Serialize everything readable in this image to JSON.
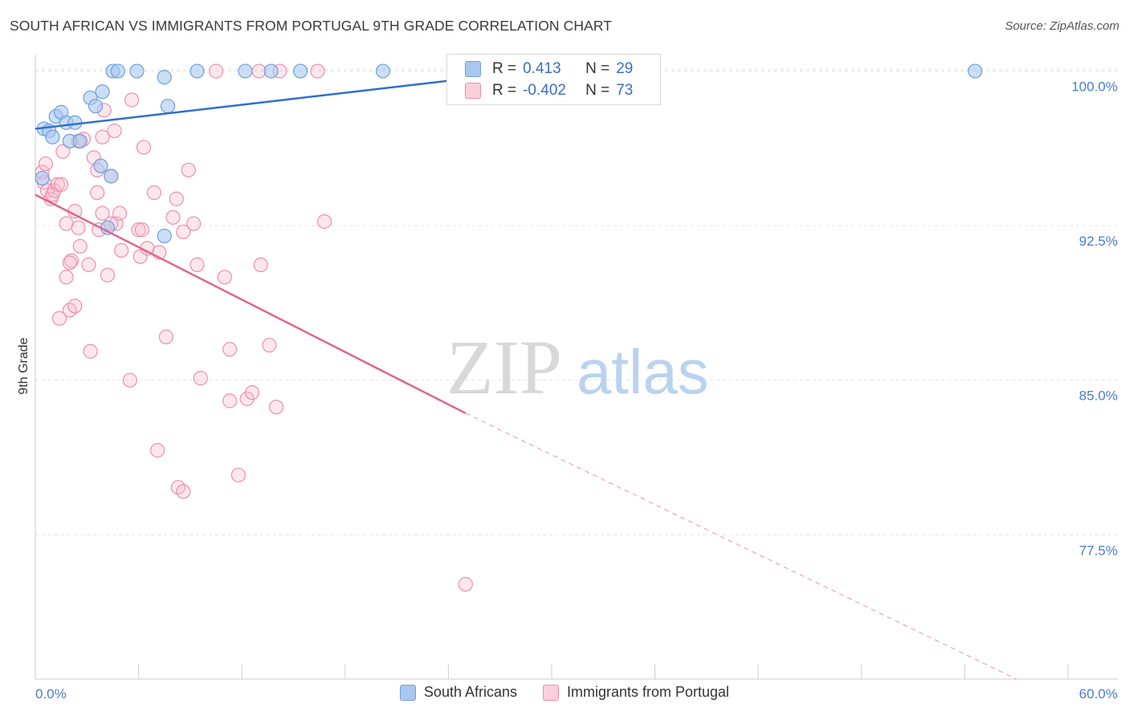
{
  "title": "SOUTH AFRICAN VS IMMIGRANTS FROM PORTUGAL 9TH GRADE CORRELATION CHART",
  "source": "Source: ZipAtlas.com",
  "watermark": {
    "zip": "ZIP",
    "atlas": "atlas"
  },
  "colors": {
    "blue_fill": "#a9c8ef",
    "blue_stroke": "#6f9fdc",
    "blue_line": "#2f6fcc",
    "pink_fill": "#f5b9cc",
    "pink_stroke": "#ec8fae",
    "pink_line": "#e0648f",
    "tick_text": "#4a7cc9",
    "grid": "#e3e3e3"
  },
  "legend": {
    "rows": [
      {
        "r_label": "R =",
        "r_value": "0.413",
        "n_label": "N =",
        "n_value": "29"
      },
      {
        "r_label": "R =",
        "r_value": "-0.402",
        "n_label": "N =",
        "n_value": "73"
      }
    ]
  },
  "bottom_legend": [
    "South Africans",
    "Immigrants from Portugal"
  ],
  "chart_data": {
    "type": "scatter",
    "title": "SOUTH AFRICAN VS IMMIGRANTS FROM PORTUGAL 9TH GRADE CORRELATION CHART",
    "xlabel": "",
    "ylabel": "9th Grade",
    "xlim": [
      0,
      60
    ],
    "ylim": [
      70.5,
      100.8
    ],
    "x_tick_labels": [
      "0.0%",
      "60.0%"
    ],
    "y_ticks": [
      77.5,
      85.0,
      92.5,
      100.0
    ],
    "y_tick_labels": [
      "77.5%",
      "85.0%",
      "92.5%",
      "100.0%"
    ],
    "grid": true,
    "series": [
      {
        "name": "South Africans",
        "R": 0.413,
        "N": 29,
        "trend": {
          "x0": 0,
          "y0": 97.2,
          "x1": 33,
          "y1": 100.4
        },
        "points": [
          [
            0.5,
            97.2
          ],
          [
            0.8,
            97.1
          ],
          [
            1.0,
            96.8
          ],
          [
            1.2,
            97.8
          ],
          [
            1.5,
            98.0
          ],
          [
            1.8,
            97.5
          ],
          [
            2.3,
            97.5
          ],
          [
            2.0,
            96.6
          ],
          [
            2.6,
            96.6
          ],
          [
            3.2,
            98.7
          ],
          [
            3.5,
            98.3
          ],
          [
            3.9,
            99.0
          ],
          [
            4.2,
            92.4
          ],
          [
            3.8,
            95.4
          ],
          [
            4.4,
            94.9
          ],
          [
            4.5,
            100.0
          ],
          [
            4.8,
            100.0
          ],
          [
            5.9,
            100.0
          ],
          [
            7.5,
            99.7
          ],
          [
            7.7,
            98.3
          ],
          [
            7.5,
            92.0
          ],
          [
            9.4,
            100.0
          ],
          [
            12.2,
            100.0
          ],
          [
            13.7,
            100.0
          ],
          [
            15.4,
            100.0
          ],
          [
            20.2,
            100.0
          ],
          [
            33.3,
            100.0
          ],
          [
            54.6,
            100.0
          ],
          [
            0.4,
            94.8
          ]
        ]
      },
      {
        "name": "Immigrants from Portugal",
        "R": -0.402,
        "N": 73,
        "trend": {
          "x0": 0,
          "y0": 94.0,
          "x1": 25,
          "y1": 83.4
        },
        "trend_ext": {
          "x0": 25,
          "y0": 83.4,
          "x1": 57,
          "y1": 70.5
        },
        "points": [
          [
            0.4,
            95.1
          ],
          [
            0.5,
            94.6
          ],
          [
            0.6,
            95.5
          ],
          [
            0.7,
            94.2
          ],
          [
            0.9,
            93.8
          ],
          [
            1.1,
            94.2
          ],
          [
            1.3,
            94.5
          ],
          [
            1.6,
            96.1
          ],
          [
            1.5,
            94.5
          ],
          [
            1.8,
            92.6
          ],
          [
            2.3,
            93.2
          ],
          [
            2.5,
            92.4
          ],
          [
            2.6,
            91.5
          ],
          [
            2.1,
            90.8
          ],
          [
            2.0,
            90.7
          ],
          [
            1.8,
            90.0
          ],
          [
            1.4,
            88.0
          ],
          [
            2.0,
            88.4
          ],
          [
            2.3,
            88.6
          ],
          [
            2.8,
            96.7
          ],
          [
            3.4,
            95.8
          ],
          [
            3.6,
            95.2
          ],
          [
            3.9,
            96.8
          ],
          [
            4.0,
            98.1
          ],
          [
            3.6,
            94.1
          ],
          [
            3.7,
            92.3
          ],
          [
            3.9,
            93.1
          ],
          [
            4.4,
            94.9
          ],
          [
            4.6,
            97.1
          ],
          [
            4.7,
            92.6
          ],
          [
            4.9,
            93.1
          ],
          [
            5.0,
            91.3
          ],
          [
            4.2,
            90.1
          ],
          [
            4.4,
            92.6
          ],
          [
            3.1,
            90.6
          ],
          [
            3.2,
            86.4
          ],
          [
            5.6,
            98.6
          ],
          [
            6.3,
            96.3
          ],
          [
            6.0,
            92.3
          ],
          [
            6.1,
            91.0
          ],
          [
            6.5,
            91.4
          ],
          [
            6.9,
            94.1
          ],
          [
            7.2,
            91.2
          ],
          [
            7.6,
            87.1
          ],
          [
            8.0,
            92.9
          ],
          [
            8.2,
            93.8
          ],
          [
            8.6,
            92.2
          ],
          [
            8.9,
            95.2
          ],
          [
            9.2,
            92.6
          ],
          [
            9.4,
            90.6
          ],
          [
            9.6,
            85.1
          ],
          [
            11.0,
            90.0
          ],
          [
            11.3,
            86.5
          ],
          [
            11.3,
            84.0
          ],
          [
            11.8,
            80.4
          ],
          [
            12.3,
            84.1
          ],
          [
            12.6,
            84.4
          ],
          [
            13.0,
            100.0
          ],
          [
            13.6,
            86.7
          ],
          [
            14.0,
            83.7
          ],
          [
            14.2,
            100.0
          ],
          [
            16.4,
            100.0
          ],
          [
            16.8,
            92.7
          ],
          [
            25.0,
            75.1
          ],
          [
            5.5,
            85.0
          ],
          [
            7.1,
            81.6
          ],
          [
            8.3,
            79.8
          ],
          [
            8.6,
            79.6
          ],
          [
            10.5,
            100.0
          ],
          [
            13.1,
            90.6
          ],
          [
            1.0,
            94.0
          ],
          [
            2.5,
            96.6
          ],
          [
            6.2,
            92.3
          ]
        ]
      }
    ]
  }
}
